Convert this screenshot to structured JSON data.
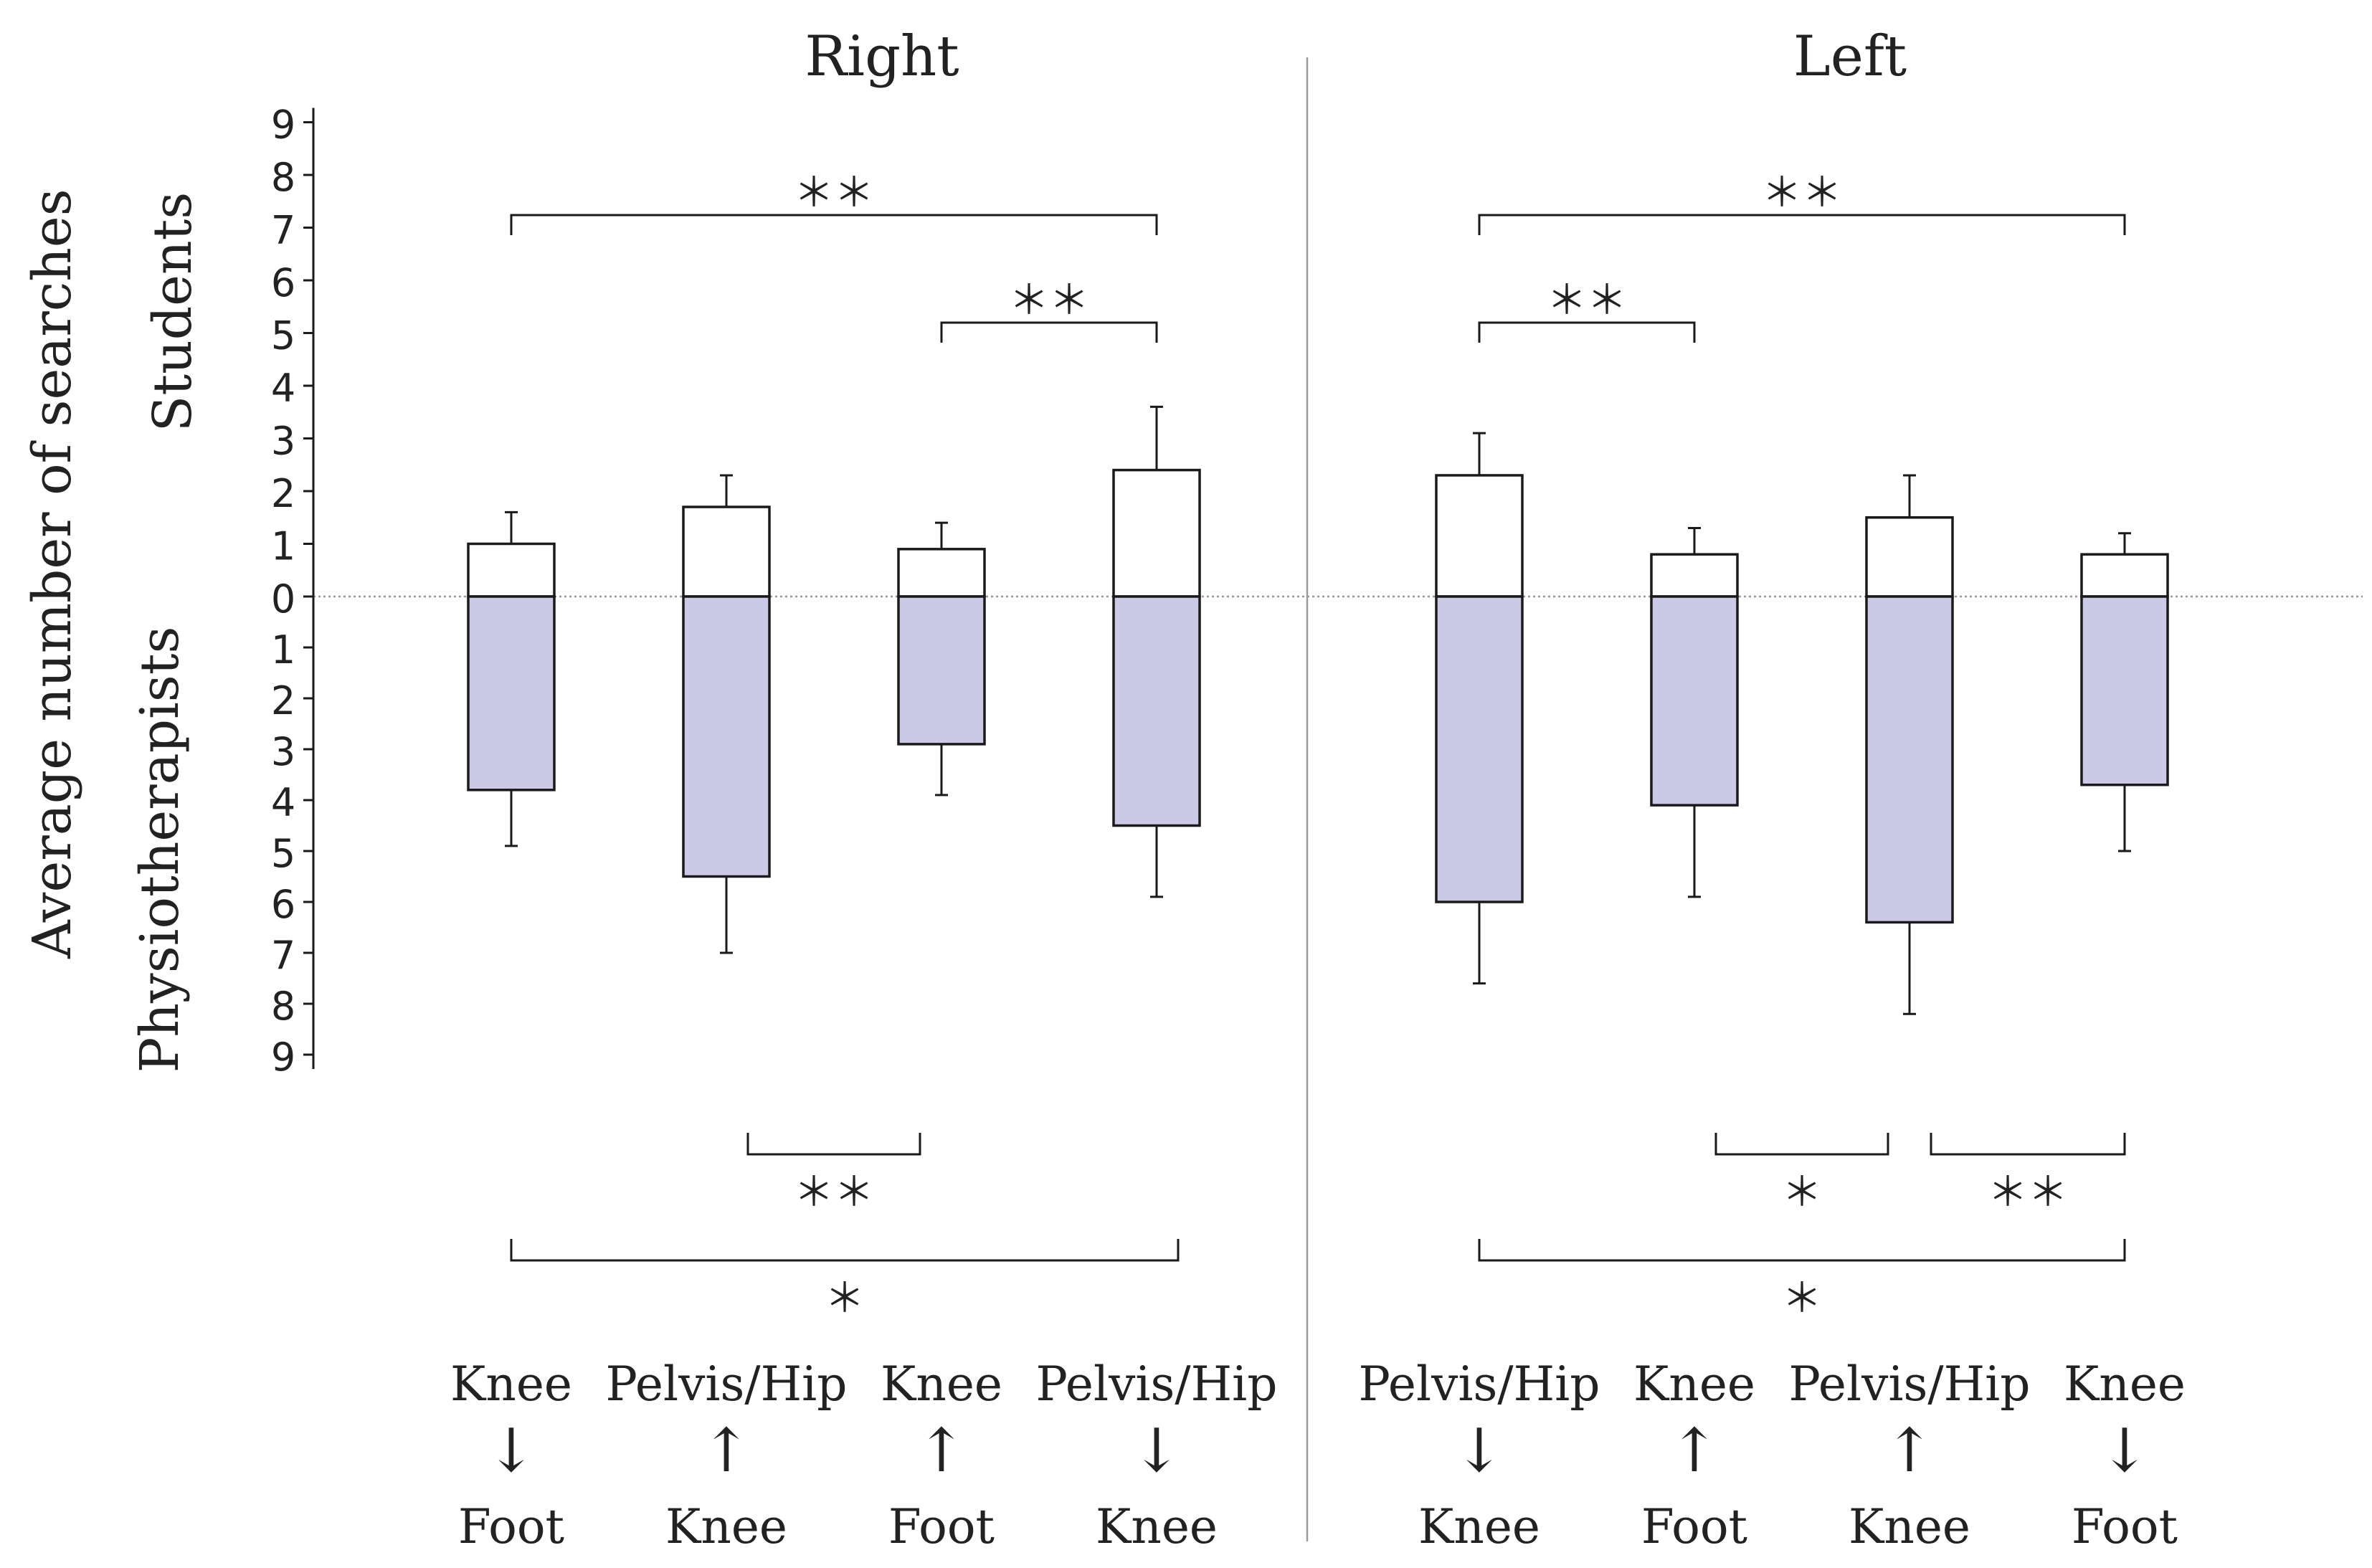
{
  "chart_data": {
    "type": "boxplot",
    "title": "",
    "ylabel": "Average number of searches",
    "upper_group_label": "Students",
    "lower_group_label": "Physiotherapists",
    "panels": [
      "Right",
      "Left"
    ],
    "y_ticks_upper": [
      "0",
      "1",
      "2",
      "3",
      "4",
      "5",
      "6",
      "7",
      "8",
      "9"
    ],
    "y_ticks_lower": [
      "1",
      "2",
      "3",
      "4",
      "5",
      "6",
      "7",
      "8",
      "9"
    ],
    "ylim_upper": [
      0,
      9
    ],
    "ylim_lower": [
      0,
      9
    ],
    "conditions": [
      {
        "panel": "Right",
        "top": "Knee",
        "arrow": "↓",
        "bottom": "Foot",
        "students": {
          "box": 1.0,
          "whisker": 1.6
        },
        "physiotherapists": {
          "box": 3.8,
          "whisker": 4.9
        }
      },
      {
        "panel": "Right",
        "top": "Pelvis/Hip",
        "arrow": "↑",
        "bottom": "Knee",
        "students": {
          "box": 1.7,
          "whisker": 2.3
        },
        "physiotherapists": {
          "box": 5.5,
          "whisker": 7.0
        }
      },
      {
        "panel": "Right",
        "top": "Knee",
        "arrow": "↑",
        "bottom": "Foot",
        "students": {
          "box": 0.9,
          "whisker": 1.4
        },
        "physiotherapists": {
          "box": 2.9,
          "whisker": 3.9
        }
      },
      {
        "panel": "Right",
        "top": "Pelvis/Hip",
        "arrow": "↓",
        "bottom": "Knee",
        "students": {
          "box": 2.4,
          "whisker": 3.6
        },
        "physiotherapists": {
          "box": 4.5,
          "whisker": 5.9
        }
      },
      {
        "panel": "Left",
        "top": "Pelvis/Hip",
        "arrow": "↓",
        "bottom": "Knee",
        "students": {
          "box": 2.3,
          "whisker": 3.1
        },
        "physiotherapists": {
          "box": 6.0,
          "whisker": 7.6
        }
      },
      {
        "panel": "Left",
        "top": "Knee",
        "arrow": "↑",
        "bottom": "Foot",
        "students": {
          "box": 0.8,
          "whisker": 1.3
        },
        "physiotherapists": {
          "box": 4.1,
          "whisker": 5.9
        }
      },
      {
        "panel": "Left",
        "top": "Pelvis/Hip",
        "arrow": "↑",
        "bottom": "Knee",
        "students": {
          "box": 1.5,
          "whisker": 2.3
        },
        "physiotherapists": {
          "box": 6.4,
          "whisker": 8.2
        }
      },
      {
        "panel": "Left",
        "top": "Knee",
        "arrow": "↓",
        "bottom": "Foot",
        "students": {
          "box": 0.8,
          "whisker": 1.2
        },
        "physiotherapists": {
          "box": 3.7,
          "whisker": 5.0
        }
      }
    ],
    "significance": [
      {
        "group": "students",
        "from": 0,
        "to": 3,
        "label": "＊＊"
      },
      {
        "group": "students",
        "from": 2,
        "to": 3,
        "label": "＊＊"
      },
      {
        "group": "students",
        "from": 4,
        "to": 7,
        "label": "＊＊"
      },
      {
        "group": "students",
        "from": 4,
        "to": 5,
        "label": "＊＊"
      },
      {
        "group": "physiotherapists",
        "from": 1,
        "to": 2,
        "label": "＊＊"
      },
      {
        "group": "physiotherapists",
        "from": 0,
        "to": 3,
        "label": "＊"
      },
      {
        "group": "physiotherapists",
        "from": 5,
        "to": 6,
        "label": "＊"
      },
      {
        "group": "physiotherapists",
        "from": 6,
        "to": 7,
        "label": "＊＊"
      },
      {
        "group": "physiotherapists",
        "from": 4,
        "to": 7,
        "label": "＊"
      }
    ],
    "colors": {
      "students_fill": "#ffffff",
      "physio_fill": "#cbc9e6",
      "stroke": "#1a1a1a",
      "zero_line": "#999999",
      "divider": "#999999"
    }
  }
}
